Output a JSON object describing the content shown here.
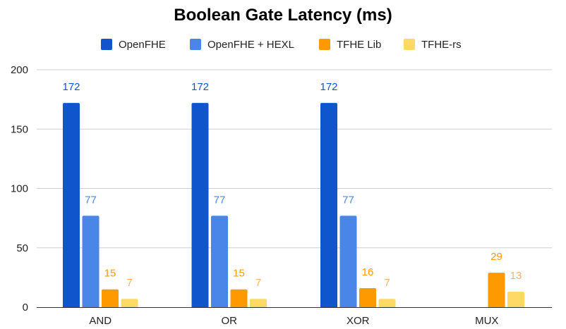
{
  "chart_data": {
    "type": "bar",
    "title": "Boolean Gate Latency (ms)",
    "categories": [
      "AND",
      "OR",
      "XOR",
      "MUX"
    ],
    "series": [
      {
        "name": "OpenFHE",
        "color": "#1155cc",
        "values": [
          172,
          172,
          172,
          null
        ]
      },
      {
        "name": "OpenFHE + HEXL",
        "color": "#4a86e8",
        "values": [
          77,
          77,
          77,
          null
        ]
      },
      {
        "name": "TFHE Lib",
        "color": "#ff9900",
        "values": [
          15,
          15,
          16,
          29
        ]
      },
      {
        "name": "TFHE-rs",
        "color": "#ffd966",
        "values": [
          7,
          7,
          7,
          13
        ]
      }
    ],
    "label_colors": [
      "#1155cc",
      "#4a86e8",
      "#ff9900",
      "#f6b26b"
    ],
    "ylim": [
      0,
      200
    ],
    "yticks": [
      0,
      50,
      100,
      150,
      200
    ],
    "grid": true,
    "legend": "top"
  }
}
